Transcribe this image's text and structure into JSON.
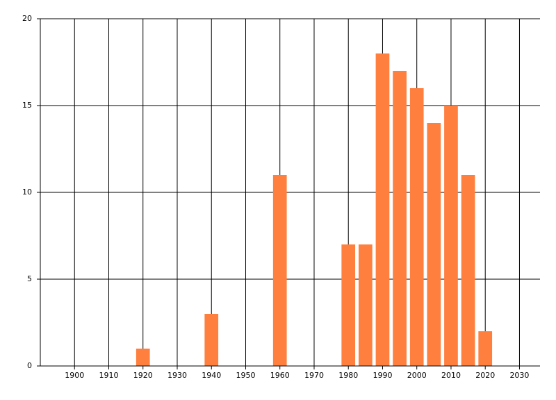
{
  "chart_data": {
    "type": "bar",
    "x": [
      1920,
      1940,
      1960,
      1980,
      1985,
      1990,
      1995,
      2000,
      2005,
      2010,
      2015,
      2020
    ],
    "values": [
      1,
      3,
      11,
      7,
      7,
      18,
      17,
      16,
      14,
      15,
      11,
      2
    ],
    "color": "#ff7f3f",
    "xlim": [
      1890,
      2036
    ],
    "xticks": [
      1900,
      1910,
      1920,
      1930,
      1940,
      1950,
      1960,
      1970,
      1980,
      1990,
      2000,
      2010,
      2020,
      2030
    ],
    "ylim": [
      0,
      20
    ],
    "yticks": [
      0,
      5,
      10,
      15,
      20
    ],
    "grid": true
  }
}
